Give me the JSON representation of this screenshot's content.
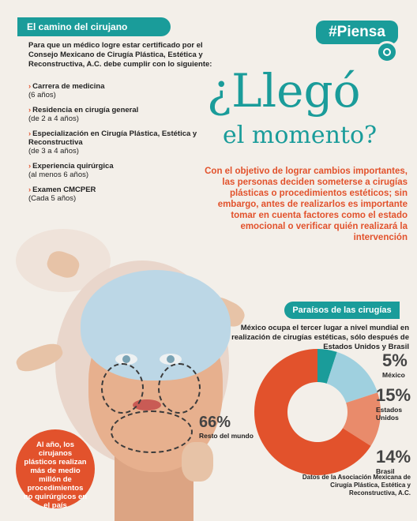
{
  "sidebar": {
    "title": "El camino del cirujano",
    "intro": "Para que un médico logre estar certificado por el Consejo Mexicano de Cirugía Plástica, Estética y Reconstructiva, A.C. debe cumplir con lo siguiente:",
    "items": [
      {
        "title": "Carrera de medicina",
        "detail": "(6 años)"
      },
      {
        "title": "Residencia en cirugía general",
        "detail": "(de 2 a 4 años)"
      },
      {
        "title": "Especialización en Cirugía Plástica, Estética y Reconstructiva",
        "detail": "(de 3 a 4 años)"
      },
      {
        "title": "Experiencia quirúrgica",
        "detail": "(al menos 6 años)"
      },
      {
        "title": "Examen CMCPER",
        "detail": "(Cada 5 años)"
      }
    ]
  },
  "badge": {
    "label": "#Piensa"
  },
  "headline": {
    "line1": "¿Llegó",
    "line2": "el momento?"
  },
  "lead": "Con el objetivo de lograr cambios importantes, las personas deciden someterse a cirugías plásticas o procedimientos estéticos; sin embargo, antes de realizarlos es importante tomar en cuenta factores como el estado emocional o verificar quién realizará la intervención",
  "section": {
    "title": "Paraísos de las cirugías",
    "description": "México ocupa el tercer lugar a nivel mundial en realización de cirugías estéticas, sólo después de Estados Unidos y Brasil"
  },
  "chart_data": {
    "type": "pie",
    "slices": [
      {
        "label": "México",
        "value": 5,
        "display": "5%",
        "color": "#1a9c9a"
      },
      {
        "label": "Estados Unidos",
        "value": 15,
        "display": "15%",
        "color": "#9fd0df"
      },
      {
        "label": "Brasil",
        "value": 14,
        "display": "14%",
        "color": "#e98b6b"
      },
      {
        "label": "Resto del mundo",
        "value": 66,
        "display": "66%",
        "color": "#e2522c"
      }
    ],
    "donut": true
  },
  "callout": "Al año, los cirujanos plásticos realizan más de medio millón de procedimientos no quirúrgicos en el país",
  "source": "Datos de la Asociación Mexicana de Cirugía Plástica, Estética y Reconstructiva, A.C."
}
